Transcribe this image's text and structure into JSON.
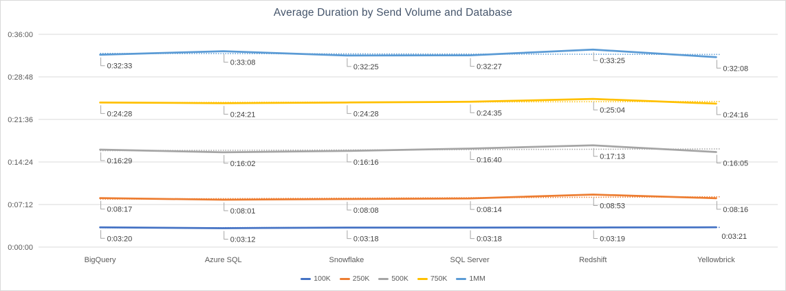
{
  "chart_data": {
    "type": "line",
    "title": "Average Duration by Send Volume and Database",
    "categories": [
      "BigQuery",
      "Azure SQL",
      "Snowflake",
      "SQL Server",
      "Redshift",
      "Yellowbrick"
    ],
    "y_axis": {
      "min": 0,
      "max": 2160,
      "unit": "seconds",
      "ticks": [
        {
          "value": 0,
          "label": "0:00:00"
        },
        {
          "value": 432,
          "label": "0:07:12"
        },
        {
          "value": 864,
          "label": "0:14:24"
        },
        {
          "value": 1296,
          "label": "0:21:36"
        },
        {
          "value": 1728,
          "label": "0:28:48"
        },
        {
          "value": 2160,
          "label": "0:36:00"
        }
      ]
    },
    "grid": true,
    "legend_position": "bottom",
    "series": [
      {
        "name": "100K",
        "color": "#4472C4",
        "values_seconds": [
          200,
          192,
          198,
          198,
          199,
          201
        ],
        "labels": [
          "0:03:20",
          "0:03:12",
          "0:03:18",
          "0:03:18",
          "0:03:19",
          "0:03:21"
        ],
        "leaderless_label_indices": [
          5
        ],
        "trendline": "dotted-linear"
      },
      {
        "name": "250K",
        "color": "#ED7D31",
        "values_seconds": [
          497,
          481,
          488,
          494,
          533,
          496
        ],
        "labels": [
          "0:08:17",
          "0:08:01",
          "0:08:08",
          "0:08:14",
          "0:08:53",
          "0:08:16"
        ],
        "leaderless_label_indices": [],
        "trendline": "dotted-linear"
      },
      {
        "name": "500K",
        "color": "#A5A5A5",
        "values_seconds": [
          989,
          962,
          976,
          1000,
          1033,
          965
        ],
        "labels": [
          "0:16:29",
          "0:16:02",
          "0:16:16",
          "0:16:40",
          "0:17:13",
          "0:16:05"
        ],
        "leaderless_label_indices": [],
        "trendline": "dotted-linear"
      },
      {
        "name": "750K",
        "color": "#FFC000",
        "values_seconds": [
          1468,
          1461,
          1468,
          1475,
          1504,
          1456
        ],
        "labels": [
          "0:24:28",
          "0:24:21",
          "0:24:28",
          "0:24:35",
          "0:25:04",
          "0:24:16"
        ],
        "leaderless_label_indices": [],
        "trendline": "dotted-linear"
      },
      {
        "name": "1MM",
        "color": "#5B9BD5",
        "values_seconds": [
          1953,
          1988,
          1945,
          1947,
          2005,
          1928
        ],
        "labels": [
          "0:32:33",
          "0:33:08",
          "0:32:25",
          "0:32:27",
          "0:33:25",
          "0:32:08"
        ],
        "leaderless_label_indices": [],
        "trendline": "dotted-linear"
      }
    ],
    "legend_entries": [
      "100K",
      "250K",
      "500K",
      "750K",
      "1MM"
    ]
  },
  "styles": {
    "background": "#FFFFFF",
    "border_color": "#D9D9D9",
    "grid_color": "#D9D9D9",
    "axis_text_color": "#595959",
    "data_label_color": "#404040",
    "leader_line_color": "#A6A6A6",
    "title_color": "#44546A"
  }
}
